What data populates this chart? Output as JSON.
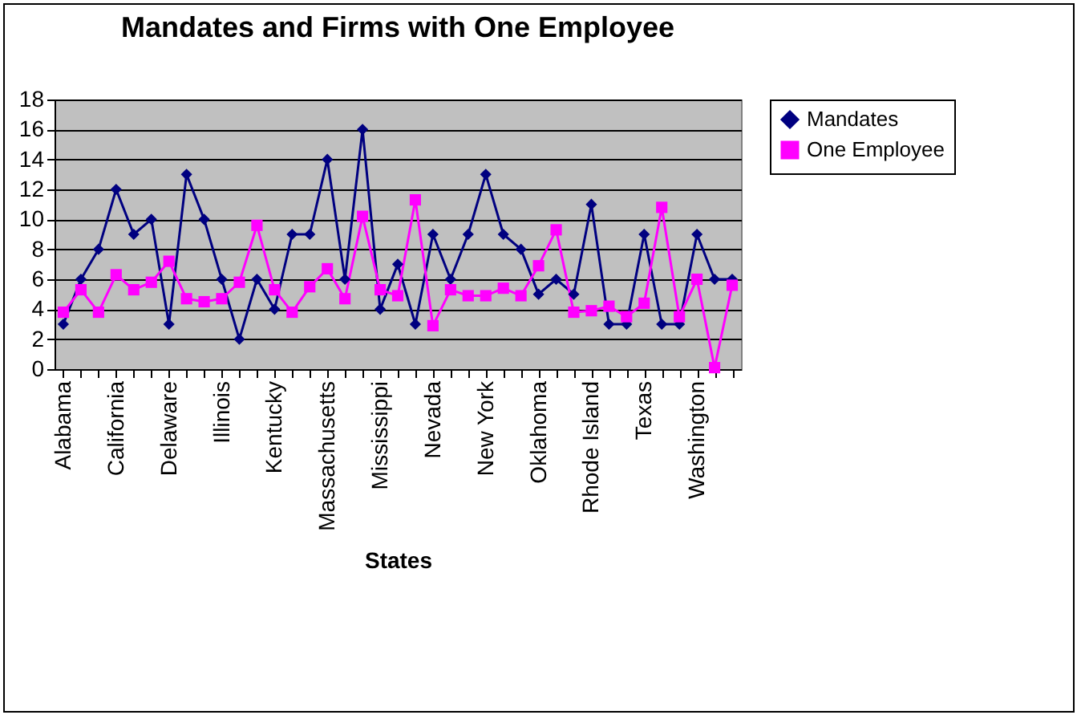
{
  "chart_data": {
    "type": "line",
    "title": "Mandates and Firms with One Employee",
    "xlabel": "States",
    "categories": [
      "Alabama",
      null,
      null,
      "California",
      null,
      null,
      "Delaware",
      null,
      null,
      "Illinois",
      null,
      null,
      "Kentucky",
      null,
      null,
      "Massachusetts",
      null,
      null,
      "Mississippi",
      null,
      null,
      "Nevada",
      null,
      null,
      "New York",
      null,
      null,
      "Oklahoma",
      null,
      null,
      "Rhode Island",
      null,
      null,
      "Texas",
      null,
      null,
      "Washington",
      null,
      null
    ],
    "series": [
      {
        "name": "Mandates",
        "color": "#000080",
        "marker": "diamond",
        "values": [
          3,
          6,
          8,
          12,
          9,
          10,
          3,
          13,
          10,
          6,
          2,
          6,
          4,
          9,
          9,
          14,
          6,
          16,
          4,
          7,
          3,
          9,
          6,
          9,
          13,
          9,
          8,
          5,
          6,
          5,
          11,
          3,
          3,
          9,
          3,
          3,
          9,
          6,
          6
        ]
      },
      {
        "name": "One Employee",
        "color": "#ff00ff",
        "marker": "square",
        "values": [
          3.8,
          5.3,
          3.8,
          6.3,
          5.3,
          5.8,
          7.2,
          4.7,
          4.5,
          4.7,
          5.8,
          9.6,
          5.3,
          3.8,
          5.5,
          6.7,
          4.7,
          10.2,
          5.3,
          4.9,
          11.3,
          2.9,
          5.3,
          4.9,
          4.9,
          5.4,
          4.9,
          6.9,
          9.3,
          3.8,
          3.9,
          4.2,
          3.5,
          4.4,
          10.8,
          3.5,
          6.0,
          0.1,
          5.6
        ]
      }
    ],
    "ylim": [
      0,
      18
    ],
    "yticks": [
      0,
      2,
      4,
      6,
      8,
      10,
      12,
      14,
      16,
      18
    ],
    "grid": "y",
    "legend": "right"
  }
}
